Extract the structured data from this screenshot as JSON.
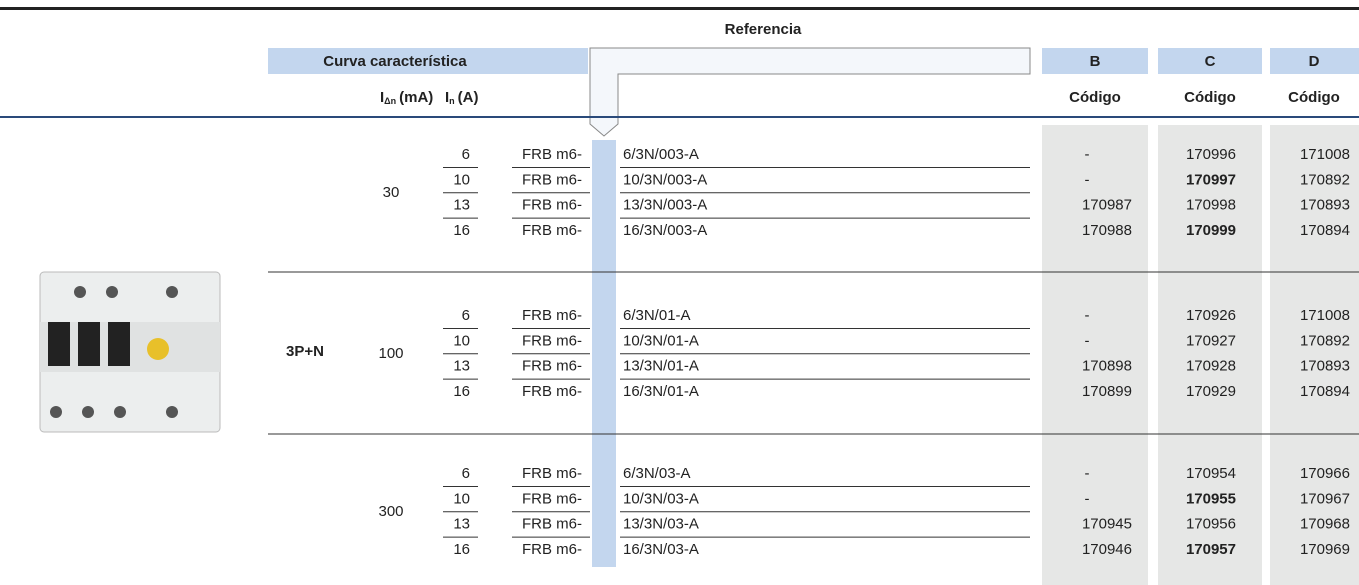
{
  "header": {
    "title": "Referencia",
    "curve_label": "Curva característica",
    "idn": {
      "symbol": "I",
      "sub": "Δn",
      "unit": "(mA)"
    },
    "in": {
      "symbol": "I",
      "sub": "n",
      "unit": "(A)"
    },
    "columns": [
      {
        "curve": "B",
        "code": "Código"
      },
      {
        "curve": "C",
        "code": "Código"
      },
      {
        "curve": "D",
        "code": "Código"
      }
    ]
  },
  "body": {
    "pole": "3P+N",
    "groups": [
      {
        "idn": "30",
        "rows": [
          {
            "in": "6",
            "prefix": "FRB m6-",
            "suffix": "6/3N/003-A",
            "codes": [
              "-",
              "170996",
              "171008"
            ],
            "bold": [
              false,
              false,
              false
            ]
          },
          {
            "in": "10",
            "prefix": "FRB m6-",
            "suffix": "10/3N/003-A",
            "codes": [
              "-",
              "170997",
              "170892"
            ],
            "bold": [
              false,
              true,
              false
            ]
          },
          {
            "in": "13",
            "prefix": "FRB m6-",
            "suffix": "13/3N/003-A",
            "codes": [
              "170987",
              "170998",
              "170893"
            ],
            "bold": [
              false,
              false,
              false
            ]
          },
          {
            "in": "16",
            "prefix": "FRB m6-",
            "suffix": "16/3N/003-A",
            "codes": [
              "170988",
              "170999",
              "170894"
            ],
            "bold": [
              false,
              true,
              false
            ]
          }
        ]
      },
      {
        "idn": "100",
        "rows": [
          {
            "in": "6",
            "prefix": "FRB m6-",
            "suffix": "6/3N/01-A",
            "codes": [
              "-",
              "170926",
              "171008"
            ],
            "bold": [
              false,
              false,
              false
            ]
          },
          {
            "in": "10",
            "prefix": "FRB m6-",
            "suffix": "10/3N/01-A",
            "codes": [
              "-",
              "170927",
              "170892"
            ],
            "bold": [
              false,
              false,
              false
            ]
          },
          {
            "in": "13",
            "prefix": "FRB m6-",
            "suffix": "13/3N/01-A",
            "codes": [
              "170898",
              "170928",
              "170893"
            ],
            "bold": [
              false,
              false,
              false
            ]
          },
          {
            "in": "16",
            "prefix": "FRB m6-",
            "suffix": "16/3N/01-A",
            "codes": [
              "170899",
              "170929",
              "170894"
            ],
            "bold": [
              false,
              false,
              false
            ]
          }
        ]
      },
      {
        "idn": "300",
        "rows": [
          {
            "in": "6",
            "prefix": "FRB m6-",
            "suffix": "6/3N/03-A",
            "codes": [
              "-",
              "170954",
              "170966"
            ],
            "bold": [
              false,
              false,
              false
            ]
          },
          {
            "in": "10",
            "prefix": "FRB m6-",
            "suffix": "10/3N/03-A",
            "codes": [
              "-",
              "170955",
              "170967"
            ],
            "bold": [
              false,
              true,
              false
            ]
          },
          {
            "in": "13",
            "prefix": "FRB m6-",
            "suffix": "13/3N/03-A",
            "codes": [
              "170945",
              "170956",
              "170968"
            ],
            "bold": [
              false,
              false,
              false
            ]
          },
          {
            "in": "16",
            "prefix": "FRB m6-",
            "suffix": "16/3N/03-A",
            "codes": [
              "170946",
              "170957",
              "170969"
            ],
            "bold": [
              false,
              true,
              false
            ]
          }
        ]
      }
    ]
  }
}
